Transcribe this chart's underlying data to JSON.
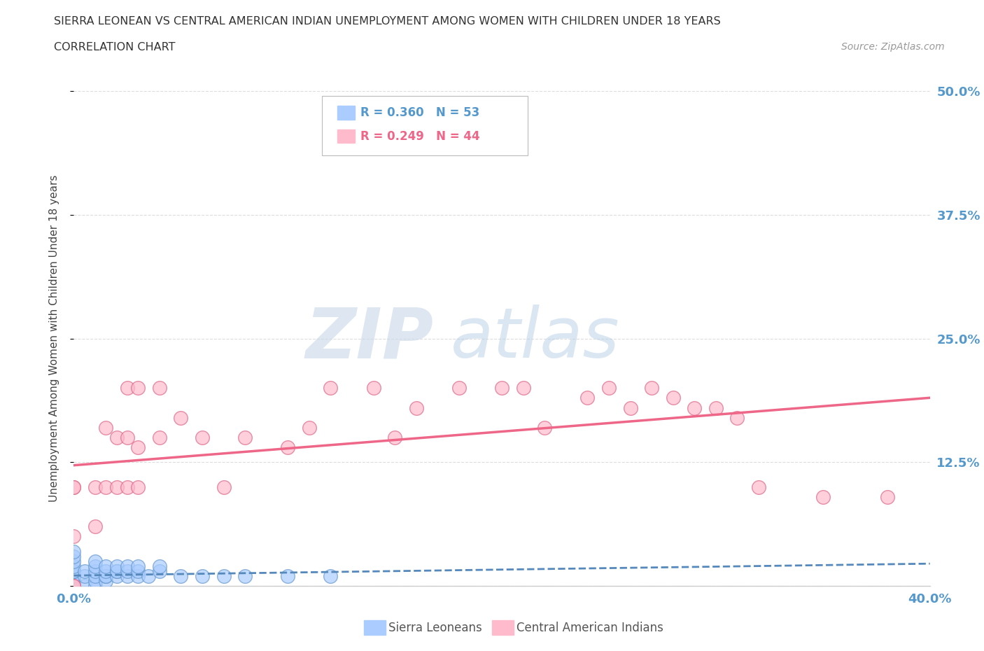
{
  "title": "SIERRA LEONEAN VS CENTRAL AMERICAN INDIAN UNEMPLOYMENT AMONG WOMEN WITH CHILDREN UNDER 18 YEARS",
  "subtitle": "CORRELATION CHART",
  "source": "Source: ZipAtlas.com",
  "ylabel": "Unemployment Among Women with Children Under 18 years",
  "xlim": [
    0.0,
    0.4
  ],
  "ylim": [
    0.0,
    0.5
  ],
  "yticks": [
    0.0,
    0.125,
    0.25,
    0.375,
    0.5
  ],
  "ytick_labels": [
    "",
    "12.5%",
    "25.0%",
    "37.5%",
    "50.0%"
  ],
  "xticks": [
    0.0,
    0.05,
    0.1,
    0.15,
    0.2,
    0.25,
    0.3,
    0.35,
    0.4
  ],
  "color_blue": "#aaccff",
  "color_blue_edge": "#6699cc",
  "color_blue_line": "#5588bb",
  "color_pink": "#ffbbcc",
  "color_pink_edge": "#dd6688",
  "color_pink_line": "#ee6688",
  "tick_label_color": "#5599cc",
  "legend_R1": "R = 0.360",
  "legend_N1": "N = 53",
  "legend_R2": "R = 0.249",
  "legend_N2": "N = 44",
  "legend_label1": "Sierra Leoneans",
  "legend_label2": "Central American Indians",
  "watermark_zip": "ZIP",
  "watermark_atlas": "atlas",
  "background_color": "#ffffff",
  "grid_color": "#dddddd",
  "sierra_x": [
    0.0,
    0.0,
    0.0,
    0.0,
    0.0,
    0.0,
    0.0,
    0.0,
    0.0,
    0.0,
    0.0,
    0.0,
    0.0,
    0.0,
    0.0,
    0.0,
    0.0,
    0.0,
    0.0,
    0.0,
    0.005,
    0.005,
    0.005,
    0.01,
    0.01,
    0.01,
    0.01,
    0.01,
    0.01,
    0.015,
    0.015,
    0.015,
    0.015,
    0.015,
    0.02,
    0.02,
    0.02,
    0.02,
    0.025,
    0.025,
    0.025,
    0.03,
    0.03,
    0.03,
    0.035,
    0.04,
    0.04,
    0.05,
    0.06,
    0.07,
    0.08,
    0.1,
    0.12
  ],
  "sierra_y": [
    0.0,
    0.0,
    0.0,
    0.0,
    0.0,
    0.0,
    0.0,
    0.0,
    0.0,
    0.0,
    0.005,
    0.005,
    0.01,
    0.01,
    0.015,
    0.015,
    0.02,
    0.025,
    0.03,
    0.035,
    0.0,
    0.01,
    0.015,
    0.0,
    0.005,
    0.01,
    0.015,
    0.02,
    0.025,
    0.005,
    0.01,
    0.01,
    0.015,
    0.02,
    0.01,
    0.015,
    0.015,
    0.02,
    0.01,
    0.015,
    0.02,
    0.01,
    0.015,
    0.02,
    0.01,
    0.015,
    0.02,
    0.01,
    0.01,
    0.01,
    0.01,
    0.01,
    0.01
  ],
  "central_x": [
    0.0,
    0.0,
    0.0,
    0.0,
    0.0,
    0.01,
    0.01,
    0.015,
    0.015,
    0.02,
    0.02,
    0.025,
    0.025,
    0.025,
    0.03,
    0.03,
    0.03,
    0.04,
    0.04,
    0.05,
    0.06,
    0.07,
    0.08,
    0.1,
    0.11,
    0.12,
    0.14,
    0.15,
    0.16,
    0.18,
    0.2,
    0.21,
    0.22,
    0.24,
    0.25,
    0.26,
    0.27,
    0.28,
    0.29,
    0.3,
    0.31,
    0.32,
    0.35,
    0.38
  ],
  "central_y": [
    0.0,
    0.0,
    0.05,
    0.1,
    0.1,
    0.06,
    0.1,
    0.1,
    0.16,
    0.1,
    0.15,
    0.1,
    0.15,
    0.2,
    0.1,
    0.14,
    0.2,
    0.15,
    0.2,
    0.17,
    0.15,
    0.1,
    0.15,
    0.14,
    0.16,
    0.2,
    0.2,
    0.15,
    0.18,
    0.2,
    0.2,
    0.2,
    0.16,
    0.19,
    0.2,
    0.18,
    0.2,
    0.19,
    0.18,
    0.18,
    0.17,
    0.1,
    0.09,
    0.09
  ]
}
